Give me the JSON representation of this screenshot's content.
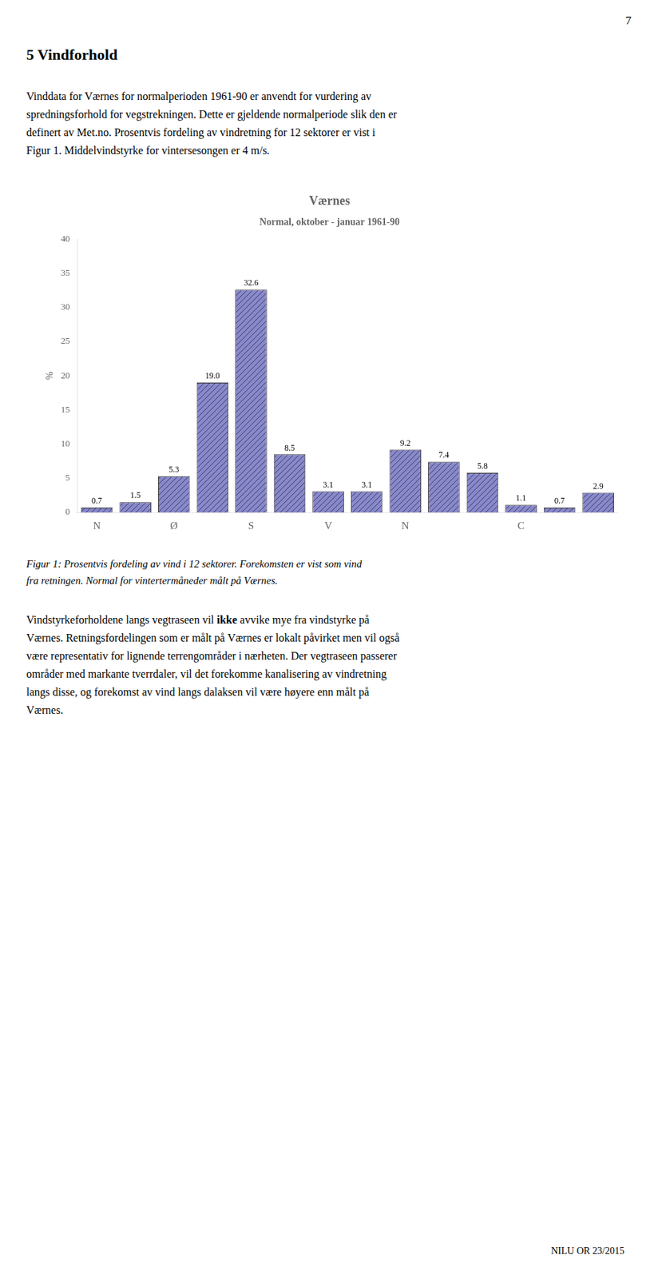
{
  "page_number": "7",
  "section_title": "5   Vindforhold",
  "paragraph1_lines": [
    "Vinddata for Værnes for normalperioden 1961-90 er anvendt for vurdering av",
    "spredningsforhold for vegstrekningen. Dette er gjeldende normalperiode slik den er",
    "definert av Met.no. Prosentvis fordeling av vindretning for 12 sektorer er vist i",
    "Figur 1. Middelvindstyrke for vintersesongen er 4 m/s."
  ],
  "caption_lines": [
    "Figur 1: Prosentvis fordeling av vind i 12 sektorer. Forekomsten er vist som vind",
    "fra retningen. Normal for vintertermåneder målt på Værnes."
  ],
  "paragraph2_lines": [
    "Vindstyrkeforholdene langs vegtraseen vil ikke avvike mye fra vindstyrke på",
    "Værnes. Retningsfordelingen som er målt på Værnes er lokalt påvirket men vil også",
    "være representativ for lignende terrengområder i nærheten. Der vegtraseen passerer",
    "områder med markante tverrdaler, vil det forekomme kanalisering av vindretning",
    "langs disse, og forekomst av vind langs dalaksen vil være høyere enn målt på",
    "Værnes."
  ],
  "paragraph2_bold_word": "ikke",
  "footer": "NILU OR 23/2015",
  "chart_data": {
    "type": "bar",
    "title": "Værnes",
    "subtitle": "Normal, oktober - januar 1961-90",
    "ylabel": "%",
    "categories": [
      "N",
      null,
      "Ø",
      null,
      "S",
      null,
      "V",
      null,
      "N",
      null,
      null,
      "C",
      null,
      null
    ],
    "values": [
      0.7,
      1.5,
      5.3,
      19.0,
      32.6,
      8.5,
      3.1,
      3.1,
      9.2,
      7.4,
      5.8,
      1.1,
      0.7,
      2.9
    ],
    "value_labels": [
      "0.7",
      "1.5",
      "5.3",
      "19.0",
      "32.6",
      "8.5",
      "3.1",
      "3.1",
      "9.2",
      "7.4",
      "5.8",
      "1.1",
      "0.7",
      "2.9"
    ],
    "data_labels": true,
    "color": "#8888cc",
    "ylim": [
      0,
      40
    ],
    "yticks": [
      0,
      5,
      10,
      15,
      20,
      25,
      30,
      35,
      40
    ],
    "grid": false
  }
}
